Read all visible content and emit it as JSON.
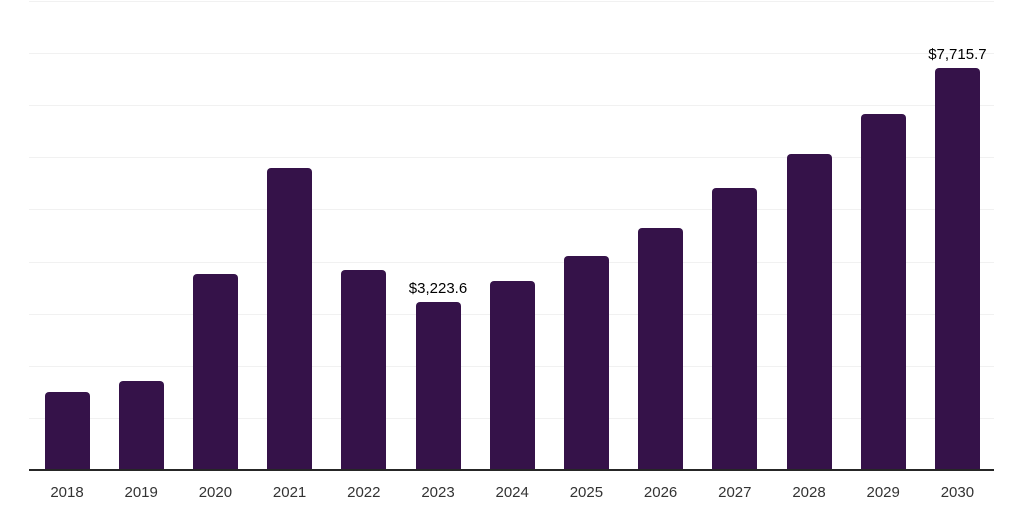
{
  "chart_data": {
    "type": "bar",
    "title": "",
    "xlabel": "",
    "ylabel": "",
    "categories": [
      "2018",
      "2019",
      "2020",
      "2021",
      "2022",
      "2023",
      "2024",
      "2025",
      "2026",
      "2027",
      "2028",
      "2029",
      "2030"
    ],
    "values": [
      1500,
      1710,
      3760,
      5800,
      3840,
      3223.6,
      3630,
      4110,
      4640,
      5410,
      6070,
      6840,
      7715.7
    ],
    "data_labels": {
      "2023": "$3,223.6",
      "2030": "$7,715.7"
    },
    "ylim": [
      0,
      9000
    ],
    "gridline_step": 1000,
    "grid": true,
    "legend_position": "none",
    "y_axis_labels_visible": false,
    "bar_color": "#351249",
    "grid_color": "#f1f1f1",
    "axis_line_color": "#262626",
    "tick_label_color": "#333333",
    "data_label_color": "#000000"
  }
}
